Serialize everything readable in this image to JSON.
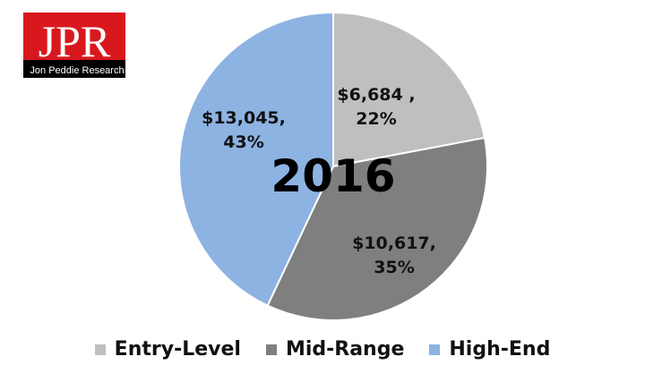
{
  "logo": {
    "text": "JPR",
    "subtitle": "Jon Peddie Research",
    "colors": {
      "red": "#d9181e",
      "black": "#000000"
    }
  },
  "chart_data": {
    "type": "pie",
    "title": "2016",
    "categories": [
      "Entry-Level",
      "Mid-Range",
      "High-End"
    ],
    "values": [
      6684,
      10617,
      13045
    ],
    "percentages": [
      22,
      35,
      43
    ],
    "data_labels": [
      "$6,684 ,",
      "$10,617,",
      "$13,045,"
    ],
    "percent_labels": [
      "22%",
      "35%",
      "43%"
    ],
    "colors": [
      "#bfbfbf",
      "#7f7f7f",
      "#8db3e2"
    ],
    "start_angle": "12 o'clock",
    "direction": "clockwise",
    "legend_placement": "bottom"
  }
}
